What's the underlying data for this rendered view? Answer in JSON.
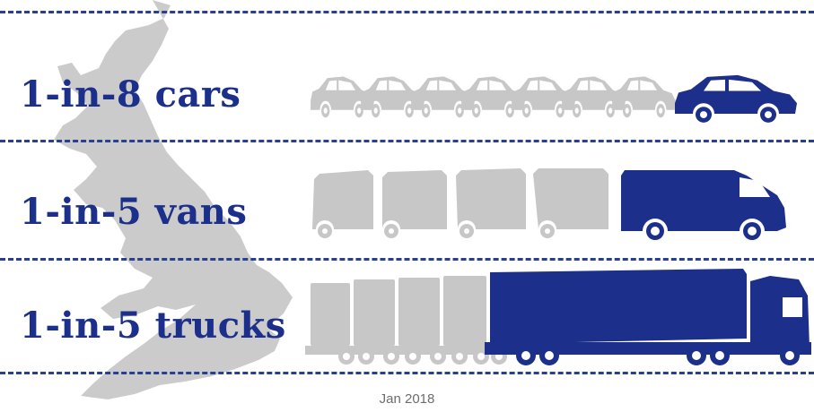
{
  "rows": [
    {
      "label": "1-in-8 cars",
      "vehicle": "car",
      "highlighted": 1,
      "total": 8
    },
    {
      "label": "1-in-5 vans",
      "vehicle": "van",
      "highlighted": 1,
      "total": 5
    },
    {
      "label": "1-in-5 trucks",
      "vehicle": "truck",
      "highlighted": 1,
      "total": 5
    }
  ],
  "footer": "Jan 2018",
  "colors": {
    "highlight": "#1c2f8a",
    "muted": "#c7c7c7",
    "map": "#cbcbcb",
    "divider": "#27408f",
    "text": "#1c2f8a"
  },
  "icons": {
    "background": "uk-map-icon",
    "car": "car-icon",
    "van": "van-icon",
    "truck": "truck-icon"
  }
}
